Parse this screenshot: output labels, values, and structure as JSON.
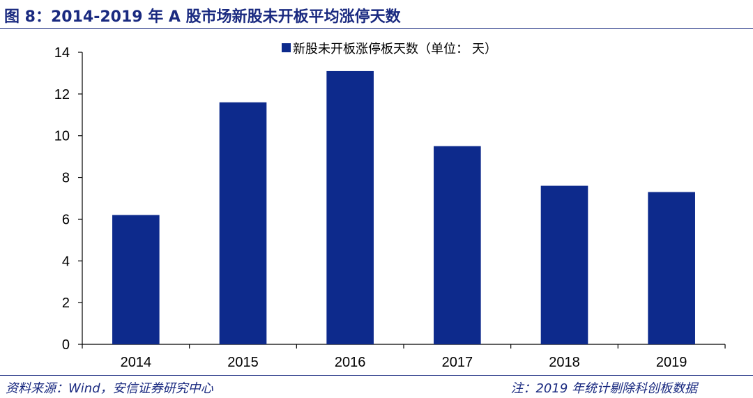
{
  "figure": {
    "title": "图 8：2014-2019 年 A 股市场新股未开板平均涨停天数",
    "source": "资料来源：Wind，安信证券研究中心",
    "note": "注：2019 年统计剔除科创板数据"
  },
  "chart_data": {
    "type": "bar",
    "categories": [
      "2014",
      "2015",
      "2016",
      "2017",
      "2018",
      "2019"
    ],
    "series": [
      {
        "name": "新股未开板涨停板天数（单位： 天）",
        "values": [
          6.2,
          11.6,
          13.1,
          9.5,
          7.6,
          7.3
        ],
        "color": "#0d2a8c"
      }
    ],
    "ylim": [
      0,
      14
    ],
    "yticks": [
      0,
      2,
      4,
      6,
      8,
      10,
      12,
      14
    ],
    "grid": false,
    "legend": "top-center",
    "xlabel": "",
    "ylabel": ""
  }
}
